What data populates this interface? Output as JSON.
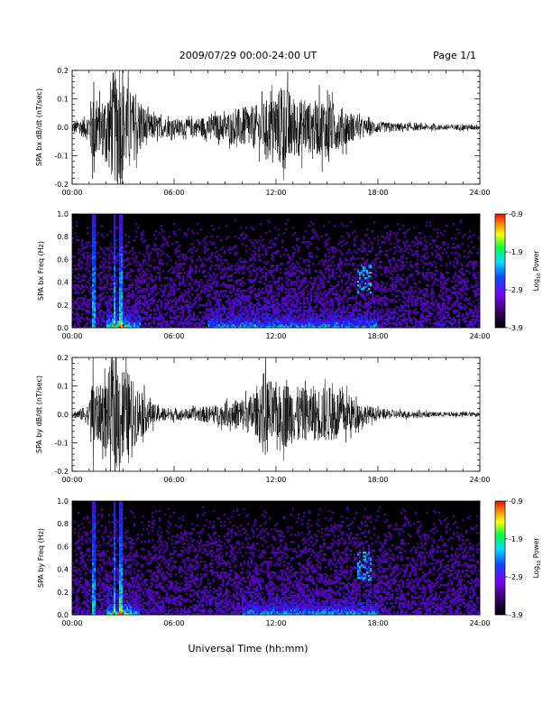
{
  "header": {
    "title": "2009/07/29  00:00-24:00 UT",
    "page": "Page 1/1"
  },
  "xlabel": "Universal Time (hh:mm)",
  "x_ticks": [
    "00:00",
    "06:00",
    "12:00",
    "18:00",
    "24:00"
  ],
  "colorbar": {
    "label": "Log",
    "label_sub": "10",
    "label_tail": " Power",
    "ticks": [
      "-0.9",
      "-1.9",
      "-2.9",
      "-3.9"
    ]
  },
  "chart_data": [
    {
      "type": "line",
      "ylabel": "SPA bx dB/dt (nT/sec)",
      "xlim": [
        0,
        24
      ],
      "ylim": [
        -0.2,
        0.2
      ],
      "y_ticks": [
        "0.2",
        "0.1",
        "0.0",
        "-0.1",
        "-0.2"
      ],
      "amplitude_envelope": {
        "hours": [
          0,
          0.5,
          1,
          1.3,
          1.5,
          2,
          2.4,
          2.8,
          3.2,
          3.6,
          4,
          4.5,
          5,
          6,
          7,
          8,
          9,
          10,
          11,
          12,
          12.5,
          13,
          14,
          15,
          15.5,
          16,
          16.5,
          17,
          18,
          19,
          20,
          21,
          22,
          23,
          24
        ],
        "values": [
          0.02,
          0.03,
          0.05,
          0.2,
          0.08,
          0.12,
          0.2,
          0.2,
          0.15,
          0.12,
          0.1,
          0.05,
          0.04,
          0.03,
          0.03,
          0.04,
          0.05,
          0.07,
          0.08,
          0.12,
          0.16,
          0.11,
          0.09,
          0.11,
          0.08,
          0.07,
          0.05,
          0.03,
          0.02,
          0.015,
          0.012,
          0.01,
          0.01,
          0.01,
          0.01
        ]
      }
    },
    {
      "type": "heatmap",
      "ylabel": "SPA bx Freq (Hz)",
      "xlim": [
        0,
        24
      ],
      "ylim": [
        0,
        1
      ],
      "y_ticks": [
        "1.0",
        "0.8",
        "0.6",
        "0.4",
        "0.2",
        "0.0"
      ],
      "zlim": [
        -3.9,
        -0.9
      ],
      "z_units": "Log10 Power",
      "vertical_bands_hours": [
        1.3,
        2.5,
        2.9
      ],
      "low_freq_enhancement_hours": [
        [
          2,
          4
        ],
        [
          8,
          18
        ]
      ]
    },
    {
      "type": "line",
      "ylabel": "SPA by dB/dt (nT/sec)",
      "xlim": [
        0,
        24
      ],
      "ylim": [
        -0.2,
        0.2
      ],
      "y_ticks": [
        "0.2",
        "0.1",
        "0.0",
        "-0.1",
        "-0.2"
      ],
      "amplitude_envelope": {
        "hours": [
          0,
          0.5,
          1,
          1.3,
          1.5,
          2,
          2.4,
          2.8,
          3.2,
          3.6,
          4,
          4.5,
          5,
          6,
          7,
          8,
          9,
          10,
          11,
          11.3,
          12,
          12.5,
          13,
          14,
          15,
          16,
          16.5,
          17,
          18,
          19,
          20,
          21,
          22,
          23,
          24
        ],
        "values": [
          0.01,
          0.02,
          0.04,
          0.2,
          0.09,
          0.13,
          0.2,
          0.2,
          0.16,
          0.12,
          0.09,
          0.05,
          0.03,
          0.02,
          0.02,
          0.03,
          0.04,
          0.06,
          0.08,
          0.16,
          0.09,
          0.12,
          0.1,
          0.09,
          0.1,
          0.08,
          0.06,
          0.04,
          0.02,
          0.015,
          0.012,
          0.01,
          0.008,
          0.008,
          0.008
        ]
      }
    },
    {
      "type": "heatmap",
      "ylabel": "SPA by Freq (Hz)",
      "xlim": [
        0,
        24
      ],
      "ylim": [
        0,
        1
      ],
      "y_ticks": [
        "1.0",
        "0.8",
        "0.6",
        "0.4",
        "0.2",
        "0.0"
      ],
      "zlim": [
        -3.9,
        -0.9
      ],
      "z_units": "Log10 Power",
      "vertical_bands_hours": [
        1.3,
        2.5,
        2.9
      ],
      "low_freq_enhancement_hours": [
        [
          2,
          4
        ],
        [
          10,
          18
        ]
      ]
    }
  ]
}
